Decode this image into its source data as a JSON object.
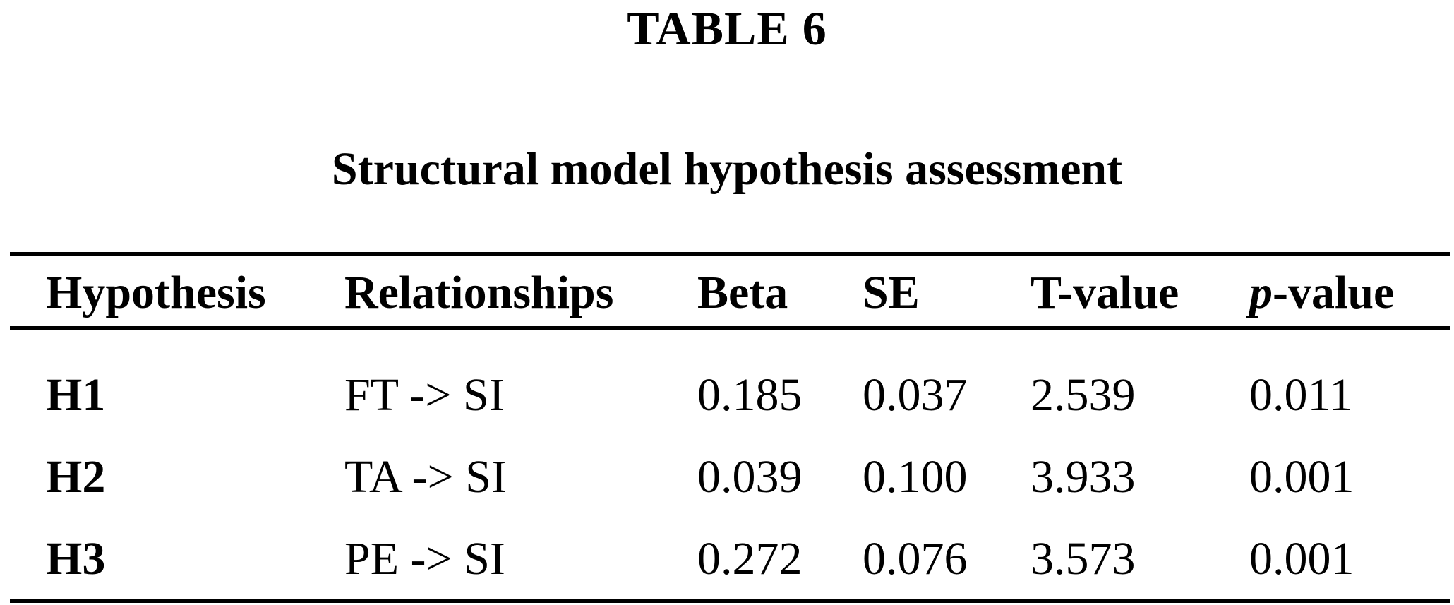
{
  "table_number": "TABLE 6",
  "caption": "Structural model hypothesis assessment",
  "headers": {
    "hypothesis": "Hypothesis",
    "relationships": "Relationships",
    "beta": "Beta",
    "se": "SE",
    "tvalue": "T-value",
    "pvalue_italic": "p",
    "pvalue_rest": "-value"
  },
  "rows": [
    {
      "hypothesis": "H1",
      "relationship": "FT -> SI",
      "beta": "0.185",
      "se": "0.037",
      "tvalue": "2.539",
      "pvalue": "0.011"
    },
    {
      "hypothesis": "H2",
      "relationship": "TA -> SI",
      "beta": "0.039",
      "se": "0.100",
      "tvalue": "3.933",
      "pvalue": "0.001"
    },
    {
      "hypothesis": "H3",
      "relationship": "PE -> SI",
      "beta": "0.272",
      "se": "0.076",
      "tvalue": "3.573",
      "pvalue": "0.001"
    }
  ]
}
